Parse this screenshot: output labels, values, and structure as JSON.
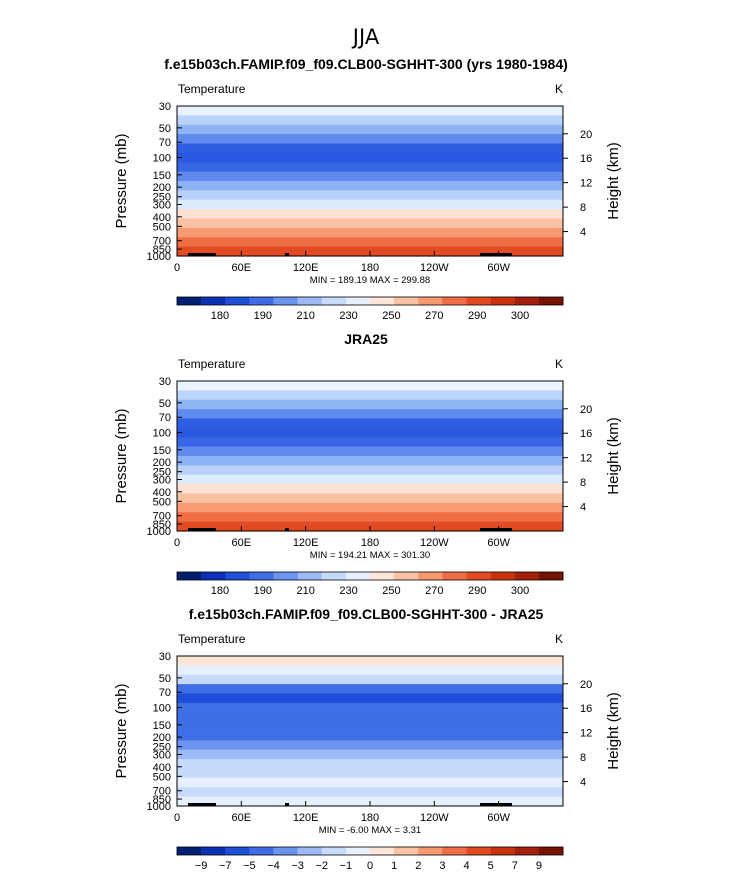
{
  "page_title": "JJA",
  "chart_data": [
    {
      "type": "heatmap",
      "title": "f.e15b03ch.FAMIP.f09_f09.CLB00-SGHHT-300 (yrs 1980-1984)",
      "variable": "Temperature",
      "units": "K",
      "ylabel_left": "Pressure (mb)",
      "ylabel_right": "Height (km)",
      "y_ticks_left": [
        "30",
        "50",
        "70",
        "100",
        "150",
        "200",
        "250",
        "300",
        "400",
        "500",
        "700",
        "850",
        "1000"
      ],
      "y_ticks_right": [
        "20",
        "16",
        "12",
        "8",
        "4"
      ],
      "x_ticks": [
        "0",
        "60E",
        "120E",
        "180",
        "120W",
        "60W"
      ],
      "stats": "MIN = 189.19   MAX = 299.88",
      "colorbar_labels": [
        "180",
        "190",
        "210",
        "230",
        "250",
        "270",
        "290",
        "300"
      ],
      "colorbar_colors": [
        "#001f6e",
        "#0a2fb4",
        "#1f4ed8",
        "#3f6ee6",
        "#6b94f0",
        "#9cbaf6",
        "#c6dafb",
        "#e6f0fe",
        "#fde6d6",
        "#fbc3a6",
        "#f69a72",
        "#ef6e45",
        "#e24a22",
        "#c8320f",
        "#a4200a",
        "#751200"
      ],
      "band_colors_top_to_bottom": [
        "#e8f1fe",
        "#b9d2fa",
        "#8eb3f5",
        "#5f8bee",
        "#2f5ee3",
        "#2a58e1",
        "#3865e4",
        "#5f8bee",
        "#8cb1f4",
        "#b9d1fa",
        "#deeafd",
        "#fde2d1",
        "#fbc1a3",
        "#f89b74",
        "#f06d45",
        "#e24a22"
      ]
    },
    {
      "type": "heatmap",
      "title": "JRA25",
      "variable": "Temperature",
      "units": "K",
      "ylabel_left": "Pressure (mb)",
      "ylabel_right": "Height (km)",
      "y_ticks_left": [
        "30",
        "50",
        "70",
        "100",
        "150",
        "200",
        "250",
        "300",
        "400",
        "500",
        "700",
        "850",
        "1000"
      ],
      "y_ticks_right": [
        "20",
        "16",
        "12",
        "8",
        "4"
      ],
      "x_ticks": [
        "0",
        "60E",
        "120E",
        "180",
        "120W",
        "60W"
      ],
      "stats": "MIN = 194.21   MAX = 301.30",
      "colorbar_labels": [
        "180",
        "190",
        "210",
        "230",
        "250",
        "270",
        "290",
        "300"
      ],
      "colorbar_colors": [
        "#001f6e",
        "#0a2fb4",
        "#1f4ed8",
        "#3f6ee6",
        "#6b94f0",
        "#9cbaf6",
        "#c6dafb",
        "#e6f0fe",
        "#fde6d6",
        "#fbc3a6",
        "#f69a72",
        "#ef6e45",
        "#e24a22",
        "#c8320f",
        "#a4200a",
        "#751200"
      ],
      "band_colors_top_to_bottom": [
        "#eaf3fe",
        "#bcd4fa",
        "#90b5f5",
        "#5f8bee",
        "#2f5ee3",
        "#2a58e1",
        "#3865e4",
        "#5f8bee",
        "#8cb1f4",
        "#b9d1fa",
        "#deeafd",
        "#fde2d1",
        "#fbc1a3",
        "#f89b74",
        "#f06d45",
        "#e24a22"
      ]
    },
    {
      "type": "heatmap",
      "title": "f.e15b03ch.FAMIP.f09_f09.CLB00-SGHHT-300 - JRA25",
      "variable": "Temperature",
      "units": "K",
      "ylabel_left": "Pressure (mb)",
      "ylabel_right": "Height (km)",
      "y_ticks_left": [
        "30",
        "50",
        "70",
        "100",
        "150",
        "200",
        "250",
        "300",
        "400",
        "500",
        "700",
        "850",
        "1000"
      ],
      "y_ticks_right": [
        "20",
        "16",
        "12",
        "8",
        "4"
      ],
      "x_ticks": [
        "0",
        "60E",
        "120E",
        "180",
        "120W",
        "60W"
      ],
      "stats": "MIN =   -6.00   MAX =    3.31",
      "colorbar_labels": [
        "−9",
        "−7",
        "−5",
        "−4",
        "−3",
        "−2",
        "−1",
        "0",
        "1",
        "2",
        "3",
        "4",
        "5",
        "7",
        "9"
      ],
      "colorbar_colors": [
        "#001f6e",
        "#0a2fb4",
        "#1f4ed8",
        "#3f6ee6",
        "#6b94f0",
        "#9cbaf6",
        "#c6dafb",
        "#e6f0fe",
        "#fde6d6",
        "#fbc3a6",
        "#f69a72",
        "#ef6e45",
        "#e24a22",
        "#c8320f",
        "#a4200a",
        "#751200"
      ],
      "band_colors_top_to_bottom": [
        "#fde6d6",
        "#e6f0fe",
        "#c6dafb",
        "#3f6ee6",
        "#1f4ed8",
        "#3f6ee6",
        "#3f6ee6",
        "#3f6ee6",
        "#3f6ee6",
        "#6b94f0",
        "#9cbaf6",
        "#c6dafb",
        "#c6dafb",
        "#e6f0fe",
        "#c6dafb",
        "#e6f0fe"
      ]
    }
  ]
}
